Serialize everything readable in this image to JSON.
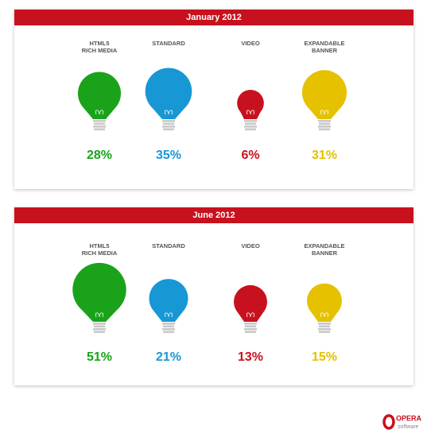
{
  "chart_data": [
    {
      "type": "pictogram",
      "title": "January 2012",
      "categories": [
        "HTML5\nRICH MEDIA",
        "STANDARD",
        "VIDEO",
        "EXPANDABLE\nBANNER"
      ],
      "values": [
        28,
        35,
        6,
        31
      ],
      "value_labels": [
        "28%",
        "35%",
        "6%",
        "31%"
      ],
      "colors": [
        "#1aa31a",
        "#1897d5",
        "#c8111e",
        "#e5c100"
      ]
    },
    {
      "type": "pictogram",
      "title": "June 2012",
      "categories": [
        "HTML5\nRICH MEDIA",
        "STANDARD",
        "VIDEO",
        "EXPANDABLE\nBANNER"
      ],
      "values": [
        51,
        21,
        13,
        15
      ],
      "value_labels": [
        "51%",
        "21%",
        "13%",
        "15%"
      ],
      "colors": [
        "#1aa31a",
        "#1897d5",
        "#c8111e",
        "#e5c100"
      ]
    }
  ],
  "logo": {
    "brand": "OPERA",
    "tagline": "software"
  }
}
